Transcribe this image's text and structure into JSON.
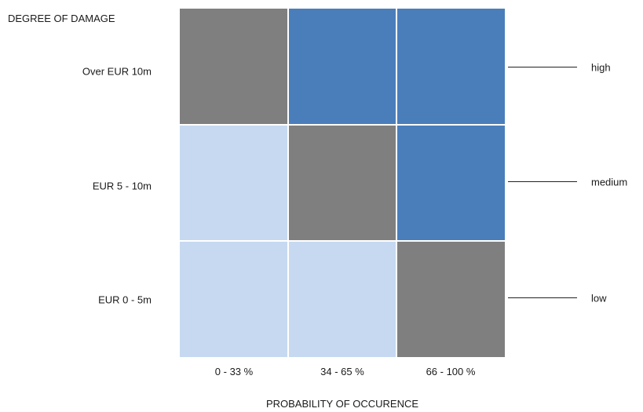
{
  "chart_data": {
    "type": "heatmap",
    "ylabel": "DEGREE OF DAMAGE",
    "xlabel": "PROBABILITY OF OCCURENCE",
    "rows": [
      "Over EUR 10m",
      "EUR 5 - 10m",
      "EUR 0 - 5m"
    ],
    "columns": [
      "0 - 33 %",
      "34 - 65 %",
      "66 - 100 %"
    ],
    "levels": [
      "high",
      "medium",
      "low"
    ],
    "cells": [
      [
        "medium",
        "high",
        "high"
      ],
      [
        "low",
        "medium",
        "high"
      ],
      [
        "low",
        "low",
        "medium"
      ]
    ],
    "colors": {
      "high": "#4a7ebb",
      "medium": "#7f7f7f",
      "low": "#c6d9f1"
    }
  }
}
